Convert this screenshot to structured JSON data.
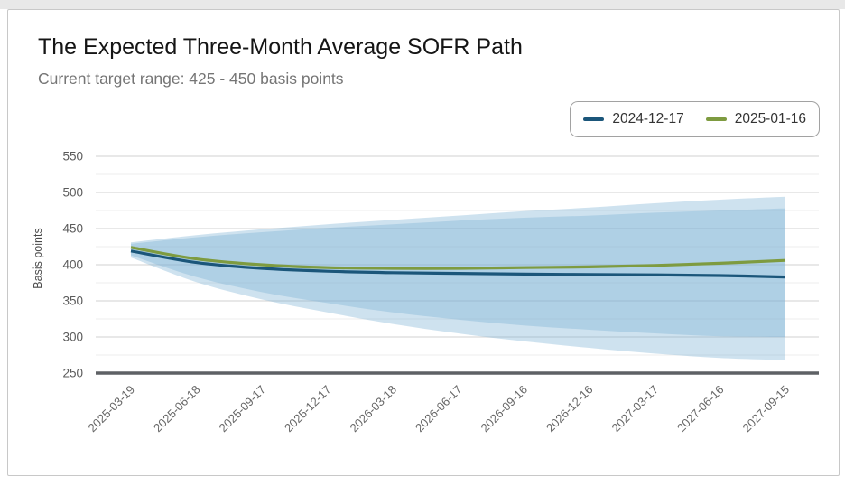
{
  "page": {
    "title": "The Expected Three-Month Average SOFR Path",
    "subtitle": "Current target range: 425 - 450 basis points"
  },
  "legend": {
    "items": [
      {
        "label": "2024-12-17",
        "color": "#1b567a"
      },
      {
        "label": "2025-01-16",
        "color": "#7e9b40"
      }
    ]
  },
  "chart_data": {
    "type": "line",
    "title": "The Expected Three-Month Average SOFR Path",
    "subtitle": "Current target range: 425 - 450 basis points",
    "xlabel": "",
    "ylabel": "Basis points",
    "ylim": [
      250,
      550
    ],
    "y_major_ticks": [
      550,
      500,
      450,
      400,
      350,
      300,
      250
    ],
    "y_minor_ticks": [
      525,
      475,
      425,
      375,
      325,
      275
    ],
    "grid": true,
    "legend_position": "top-right",
    "band_fill": "#7fb2d6",
    "band_opacity": 0.38,
    "categories": [
      "2025-03-19",
      "2025-06-18",
      "2025-09-17",
      "2025-12-17",
      "2026-03-18",
      "2026-06-17",
      "2026-09-16",
      "2026-12-16",
      "2027-03-17",
      "2027-06-16",
      "2027-09-15"
    ],
    "series": [
      {
        "name": "2024-12-17",
        "color": "#1b567a",
        "values": [
          419,
          403,
          395,
          391,
          389,
          388,
          387,
          386.5,
          386,
          385,
          383
        ],
        "band_upper": [
          429,
          438,
          445,
          451,
          456,
          461,
          465,
          468,
          472,
          475,
          478
        ],
        "band_lower": [
          410,
          376,
          352,
          334,
          318,
          305,
          294,
          285,
          277,
          271,
          268
        ]
      },
      {
        "name": "2025-01-16",
        "color": "#7e9b40",
        "values": [
          424,
          408,
          400,
          396,
          395,
          395,
          396,
          397,
          399,
          402,
          406
        ],
        "band_upper": [
          431,
          441,
          449,
          456,
          462,
          468,
          474,
          479,
          485,
          490,
          494
        ],
        "band_lower": [
          413,
          383,
          362,
          347,
          334,
          324,
          316,
          310,
          305,
          301,
          300
        ]
      }
    ],
    "axis_colors": {
      "grid_major": "#d9d9d9",
      "grid_minor": "#ececec",
      "baseline": "#5e6165",
      "tick_text": "#5a5a5a"
    }
  }
}
